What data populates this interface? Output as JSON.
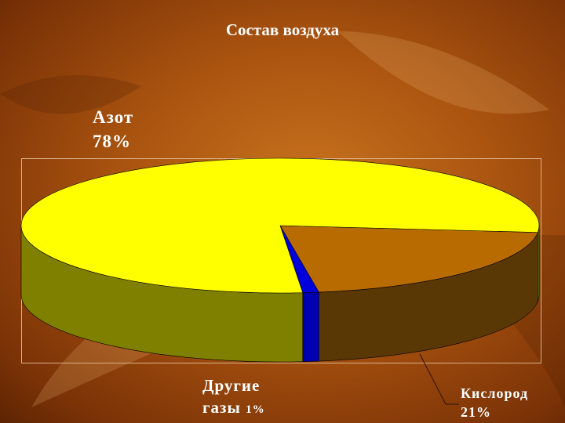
{
  "chart_data": {
    "type": "pie",
    "title": "Состав воздуха",
    "slices": [
      {
        "label": "Азот",
        "value": 78,
        "value_label": "78%",
        "color": "#ffff00",
        "side_color": "#808000"
      },
      {
        "label": "Кислород",
        "value": 21,
        "value_label": "21%",
        "color": "#b86b00",
        "side_color": "#5a3806"
      },
      {
        "label": "Другие газы",
        "value": 1,
        "value_label": "1%",
        "color": "#0000dd",
        "side_color": "#0000b0"
      }
    ],
    "style": "3d"
  }
}
